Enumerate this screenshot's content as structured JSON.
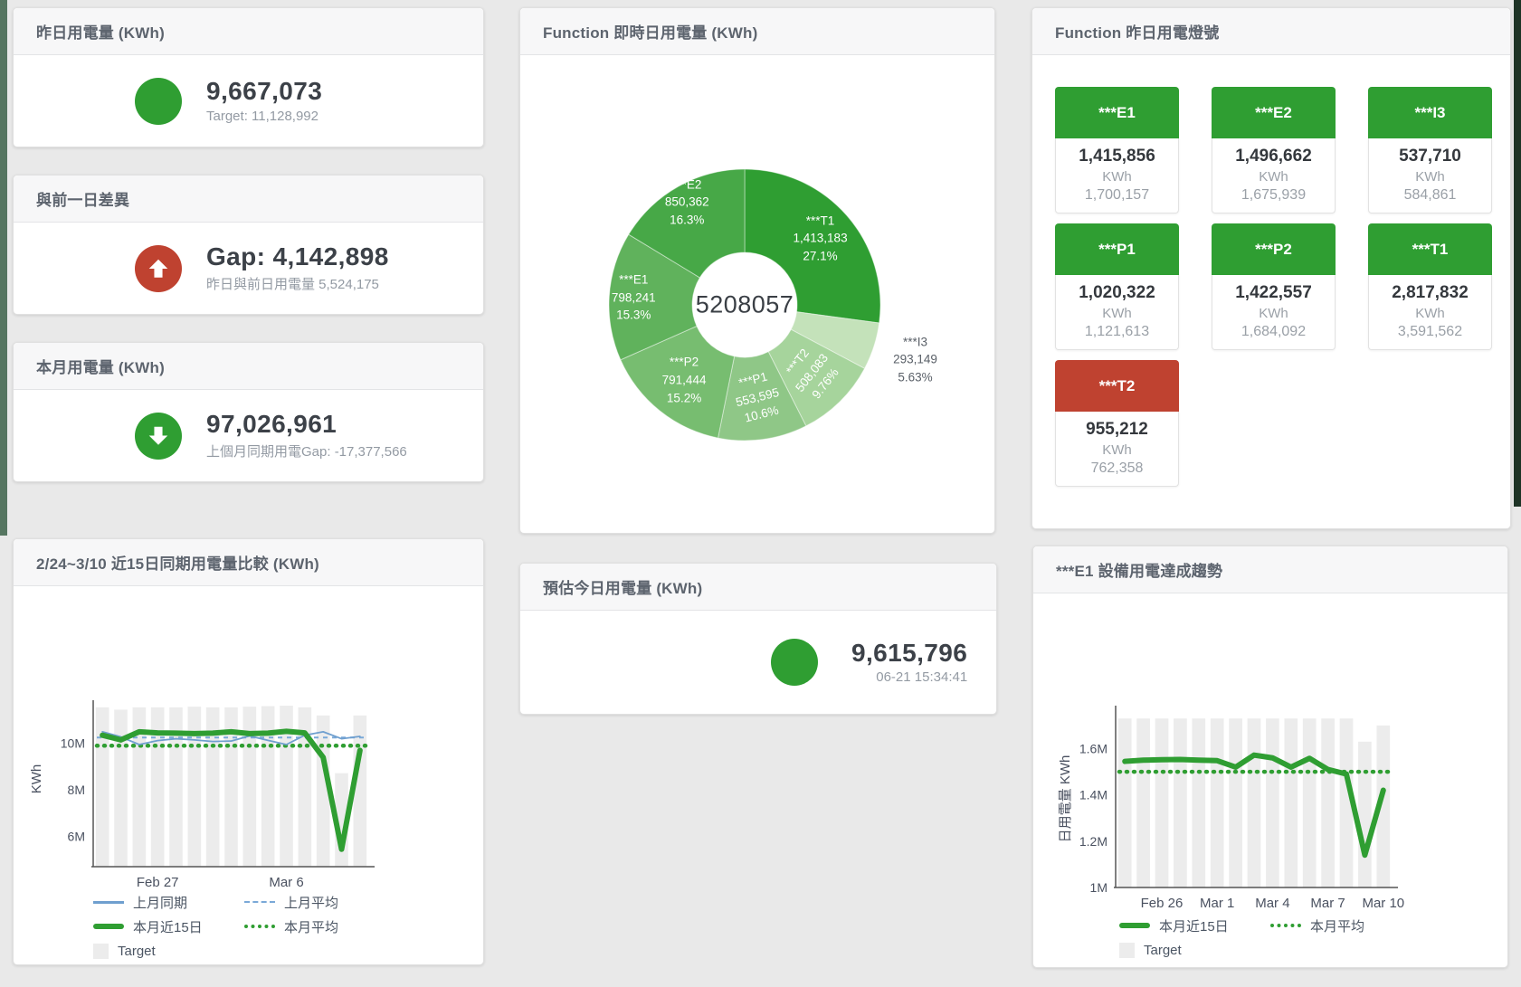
{
  "colors": {
    "green": "#2f9e32",
    "red": "#bf4230",
    "blue_line": "#6f9fcf",
    "blue_dash": "#7aa9d8",
    "target_bar": "#ececec",
    "page_bg": "#e9e9e9"
  },
  "cards": {
    "yesterday": {
      "title": "昨日用電量 (KWh)",
      "value": "9,667,073",
      "subtitle": "Target: 11,128,992",
      "status": "green",
      "arrow": "none"
    },
    "gap": {
      "title": "與前一日差異",
      "value": "Gap: 4,142,898",
      "subtitle": "昨日與前日用電量 5,524,175",
      "status": "red",
      "arrow": "up"
    },
    "month": {
      "title": "本月用電量 (KWh)",
      "value": "97,026,961",
      "subtitle": "上個月同期用電Gap: -17,377,566",
      "status": "green",
      "arrow": "down"
    },
    "estimate": {
      "title": "預估今日用電量 (KWh)",
      "value": "9,615,796",
      "subtitle": "06-21 15:34:41",
      "status": "green",
      "arrow": "none"
    }
  },
  "tiles": {
    "title": "Function 昨日用電燈號",
    "unit": "KWh",
    "items": [
      {
        "label": "***E1",
        "value": "1,415,856",
        "target": "1,700,157",
        "status": "green"
      },
      {
        "label": "***E2",
        "value": "1,496,662",
        "target": "1,675,939",
        "status": "green"
      },
      {
        "label": "***I3",
        "value": "537,710",
        "target": "584,861",
        "status": "green"
      },
      {
        "label": "***P1",
        "value": "1,020,322",
        "target": "1,121,613",
        "status": "green"
      },
      {
        "label": "***P2",
        "value": "1,422,557",
        "target": "1,684,092",
        "status": "green"
      },
      {
        "label": "***T1",
        "value": "2,817,832",
        "target": "3,591,562",
        "status": "green"
      },
      {
        "label": "***T2",
        "value": "955,212",
        "target": "762,358",
        "status": "red"
      }
    ]
  },
  "chart_data": [
    {
      "id": "realtime_donut",
      "type": "pie",
      "title": "Function 即時日用電量 (KWh)",
      "center_total": "5208057",
      "legend_position": "none",
      "slices": [
        {
          "name": "***T1",
          "value": 1413183,
          "display": "1,413,183",
          "pct": "27.1%",
          "share": 27.1,
          "color": "#2f9e32",
          "label_r": 111,
          "rotate": 0,
          "outside": false
        },
        {
          "name": "***I3",
          "value": 293149,
          "display": "293,149",
          "pct": "5.63%",
          "share": 5.63,
          "color": "#c4e2ba",
          "label_r": 198,
          "rotate": 0,
          "outside": true
        },
        {
          "name": "***T2",
          "value": 508083,
          "display": "508,083",
          "pct": "9.76%",
          "share": 9.76,
          "color": "#a6d49c",
          "label_r": 105,
          "rotate": -52,
          "outside": false
        },
        {
          "name": "***P1",
          "value": 553595,
          "display": "553,595",
          "pct": "10.6%",
          "share": 10.6,
          "color": "#8fc787",
          "label_r": 103,
          "rotate": -14,
          "outside": false
        },
        {
          "name": "***P2",
          "value": 791444,
          "display": "791,444",
          "pct": "15.2%",
          "share": 15.2,
          "color": "#77bd70",
          "label_r": 107,
          "rotate": 0,
          "outside": false
        },
        {
          "name": "***E1",
          "value": 798241,
          "display": "798,241",
          "pct": "15.3%",
          "share": 15.3,
          "color": "#60b25c",
          "label_r": 123,
          "rotate": 0,
          "outside": false
        },
        {
          "name": "***E2",
          "value": 850362,
          "display": "850,362",
          "pct": "16.3%",
          "share": 16.3,
          "color": "#47a847",
          "label_r": 130,
          "rotate": 0,
          "outside": false
        }
      ]
    },
    {
      "id": "compare",
      "type": "line+bar",
      "title": "2/24~3/10 近15日同期用電量比較 (KWh)",
      "ylabel": "KWh",
      "ylim": [
        4.7,
        11.7
      ],
      "grid": false,
      "categories": [
        "Feb 24",
        "Feb 25",
        "Feb 26",
        "Feb 27",
        "Feb 28",
        "Mar 1",
        "Mar 2",
        "Mar 3",
        "Mar 4",
        "Mar 5",
        "Mar 6",
        "Mar 7",
        "Mar 8",
        "Mar 9",
        "Mar 10"
      ],
      "yticks": [
        {
          "v": 6,
          "label": "6M"
        },
        {
          "v": 8,
          "label": "8M"
        },
        {
          "v": 10,
          "label": "10M"
        }
      ],
      "xticks": [
        {
          "i": 3,
          "label": "Feb 27"
        },
        {
          "i": 10,
          "label": "Mar 6"
        }
      ],
      "series": [
        {
          "name": "Target",
          "type": "bar",
          "color": "#ececec",
          "values": [
            11.55,
            11.45,
            11.55,
            11.55,
            11.55,
            11.58,
            11.55,
            11.55,
            11.58,
            11.6,
            11.62,
            11.55,
            11.2,
            8.72,
            11.2
          ]
        },
        {
          "name": "上月平均",
          "type": "const",
          "color": "#7aa9d8",
          "dash": "5 5",
          "width": 2,
          "value": 10.25
        },
        {
          "name": "本月平均",
          "type": "const",
          "color": "#2f9e32",
          "dash": "1 7",
          "width": 4.5,
          "cap": "round",
          "value": 9.9
        },
        {
          "name": "上月同期",
          "type": "line",
          "color": "#6f9fcf",
          "width": 1.8,
          "values": [
            10.5,
            10.28,
            9.95,
            10.12,
            10.2,
            10.15,
            10.08,
            10.1,
            10.32,
            10.13,
            9.95,
            10.35,
            10.5,
            10.2,
            10.3
          ]
        },
        {
          "name": "本月近15日",
          "type": "line",
          "color": "#2f9e32",
          "width": 6,
          "values": [
            10.35,
            10.15,
            10.5,
            10.45,
            10.44,
            10.42,
            10.44,
            10.5,
            10.42,
            10.44,
            10.52,
            10.45,
            9.4,
            5.45,
            9.7
          ]
        }
      ],
      "legend": [
        {
          "label": "上月同期",
          "swatch": "line",
          "color": "#6f9fcf"
        },
        {
          "label": "上月平均",
          "swatch": "dash",
          "color": "#7aa9d8"
        },
        {
          "label": "本月近15日",
          "swatch": "thick",
          "color": "#2f9e32"
        },
        {
          "label": "本月平均",
          "swatch": "dots",
          "color": "#2f9e32"
        },
        {
          "label": "Target",
          "swatch": "square",
          "color": "#ececec"
        }
      ]
    },
    {
      "id": "trend",
      "type": "line+bar",
      "title": "***E1 設備用電達成趨勢",
      "ylabel": "日用電量 KWh",
      "ylim": [
        1.0,
        1.77
      ],
      "grid": false,
      "categories": [
        "Feb 24",
        "Feb 25",
        "Feb 26",
        "Feb 27",
        "Feb 28",
        "Mar 1",
        "Mar 2",
        "Mar 3",
        "Mar 4",
        "Mar 5",
        "Mar 6",
        "Mar 7",
        "Mar 8",
        "Mar 9",
        "Mar 10"
      ],
      "yticks": [
        {
          "v": 1,
          "label": "1M"
        },
        {
          "v": 1.2,
          "label": "1.2M"
        },
        {
          "v": 1.4,
          "label": "1.4M"
        },
        {
          "v": 1.6,
          "label": "1.6M"
        }
      ],
      "xticks": [
        {
          "i": 2,
          "label": "Feb 26"
        },
        {
          "i": 5,
          "label": "Mar 1"
        },
        {
          "i": 8,
          "label": "Mar 4"
        },
        {
          "i": 11,
          "label": "Mar 7"
        },
        {
          "i": 14,
          "label": "Mar 10"
        }
      ],
      "series": [
        {
          "name": "Target",
          "type": "bar",
          "color": "#ececec",
          "values": [
            1.73,
            1.73,
            1.73,
            1.73,
            1.73,
            1.73,
            1.73,
            1.73,
            1.73,
            1.73,
            1.73,
            1.73,
            1.73,
            1.63,
            1.7
          ]
        },
        {
          "name": "本月平均",
          "type": "const",
          "color": "#2f9e32",
          "dash": "1 7",
          "width": 4.5,
          "cap": "round",
          "value": 1.5
        },
        {
          "name": "本月近15日",
          "type": "line",
          "color": "#2f9e32",
          "width": 6,
          "values": [
            1.545,
            1.55,
            1.552,
            1.553,
            1.55,
            1.548,
            1.52,
            1.572,
            1.56,
            1.52,
            1.558,
            1.51,
            1.49,
            1.14,
            1.42
          ]
        }
      ],
      "legend": [
        {
          "label": "本月近15日",
          "swatch": "thick",
          "color": "#2f9e32"
        },
        {
          "label": "本月平均",
          "swatch": "dots",
          "color": "#2f9e32"
        },
        {
          "label": "Target",
          "swatch": "square",
          "color": "#ececec"
        }
      ]
    }
  ]
}
